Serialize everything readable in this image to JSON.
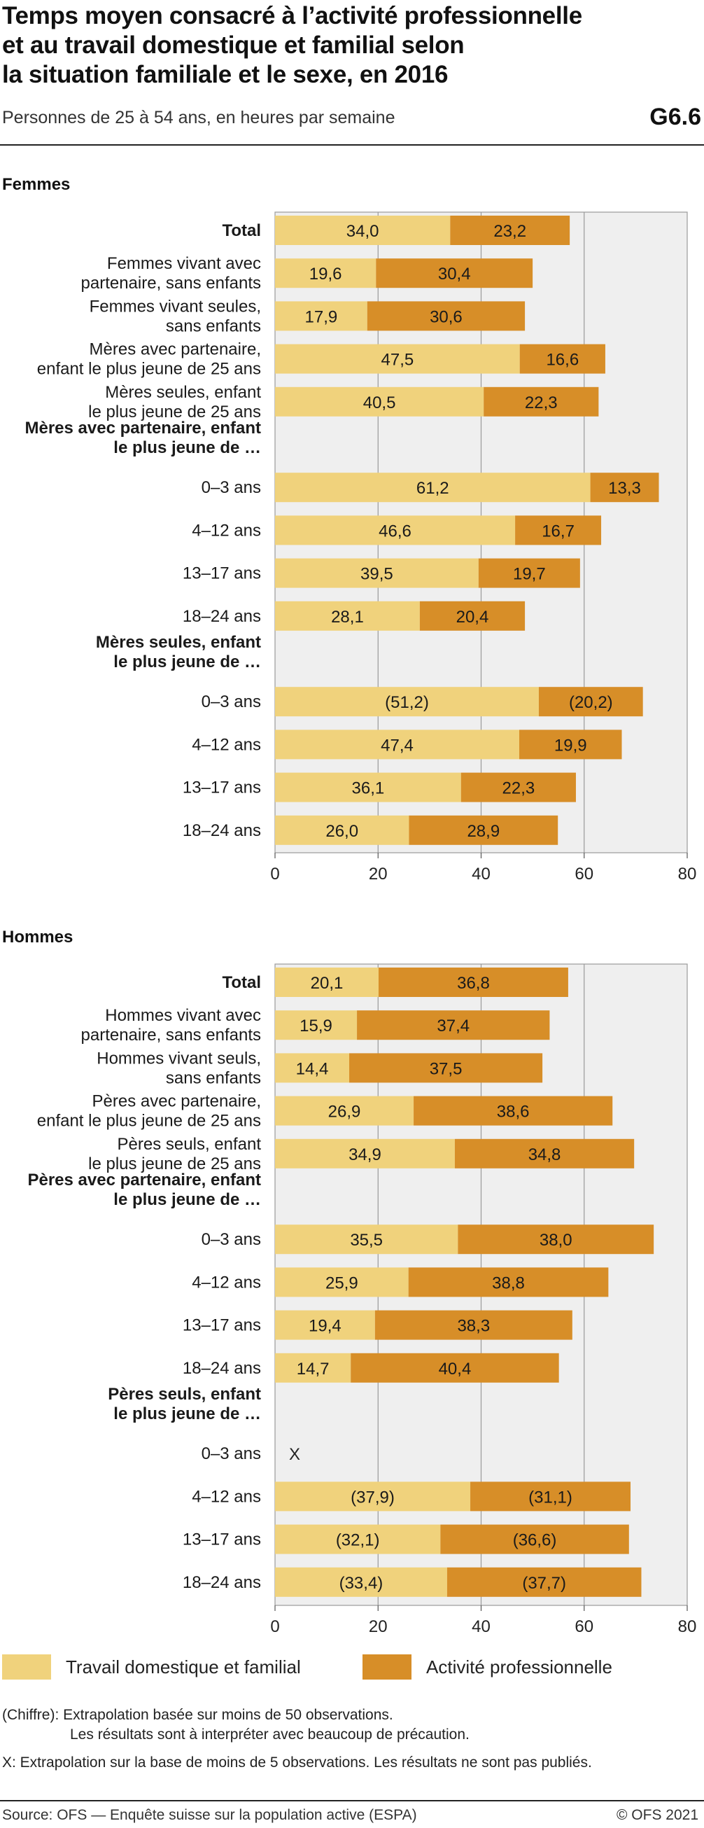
{
  "header": {
    "title_lines": [
      "Temps moyen consacré à l’activité professionnelle",
      "et au travail domestique et familial selon",
      "la situation familiale et le sexe, en 2016"
    ],
    "subtitle": "Personnes de 25 à 54 ans, en heures par semaine",
    "code": "G6.6"
  },
  "legend": {
    "items": [
      {
        "label": "Travail domestique et familial",
        "color": "#f0d27c"
      },
      {
        "label": "Activité professionnelle",
        "color": "#d78e28"
      }
    ]
  },
  "notes": {
    "line1": "(Chiffre): Extrapolation basée sur moins de 50 observations.",
    "line2": "Les résultats sont à interpréter avec beaucoup de précaution.",
    "line3": "X:  Extrapolation sur la base de moins de 5 observations. Les résultats ne sont pas publiés."
  },
  "footer": {
    "source": "Source: OFS — Enquête suisse sur la population active (ESPA)",
    "copyright": "© OFS 2021"
  },
  "chart_data": [
    {
      "type": "bar",
      "orientation": "horizontal",
      "stacked": true,
      "panel_title": "Femmes",
      "xlim": [
        0,
        80
      ],
      "xticks": [
        0,
        20,
        40,
        60,
        80
      ],
      "grid": true,
      "series_names": [
        "Travail domestique et familial",
        "Activité professionnelle"
      ],
      "rows": [
        {
          "label": [
            "Total"
          ],
          "bold": true,
          "values": [
            34.0,
            23.2
          ],
          "value_labels": [
            "34,0",
            "23,2"
          ]
        },
        {
          "label": [
            "Femmes vivant avec",
            "partenaire, sans enfants"
          ],
          "values": [
            19.6,
            30.4
          ],
          "value_labels": [
            "19,6",
            "30,4"
          ]
        },
        {
          "label": [
            "Femmes vivant seules,",
            "sans enfants"
          ],
          "values": [
            17.9,
            30.6
          ],
          "value_labels": [
            "17,9",
            "30,6"
          ]
        },
        {
          "label": [
            "Mères avec partenaire,",
            "enfant le plus jeune de 25 ans"
          ],
          "values": [
            47.5,
            16.6
          ],
          "value_labels": [
            "47,5",
            "16,6"
          ]
        },
        {
          "label": [
            "Mères seules, enfant",
            "le plus jeune de 25 ans"
          ],
          "values": [
            40.5,
            22.3
          ],
          "value_labels": [
            "40,5",
            "22,3"
          ]
        },
        {
          "heading": true,
          "label": [
            "Mères avec partenaire, enfant",
            "le plus jeune de …"
          ]
        },
        {
          "label": [
            "0–3 ans"
          ],
          "values": [
            61.2,
            13.3
          ],
          "value_labels": [
            "61,2",
            "13,3"
          ]
        },
        {
          "label": [
            "4–12 ans"
          ],
          "values": [
            46.6,
            16.7
          ],
          "value_labels": [
            "46,6",
            "16,7"
          ]
        },
        {
          "label": [
            "13–17 ans"
          ],
          "values": [
            39.5,
            19.7
          ],
          "value_labels": [
            "39,5",
            "19,7"
          ]
        },
        {
          "label": [
            "18–24 ans"
          ],
          "values": [
            28.1,
            20.4
          ],
          "value_labels": [
            "28,1",
            "20,4"
          ]
        },
        {
          "heading": true,
          "label": [
            "Mères seules, enfant",
            "le plus jeune de …"
          ]
        },
        {
          "label": [
            "0–3 ans"
          ],
          "values": [
            51.2,
            20.2
          ],
          "value_labels": [
            "(51,2)",
            "(20,2)"
          ]
        },
        {
          "label": [
            "4–12 ans"
          ],
          "values": [
            47.4,
            19.9
          ],
          "value_labels": [
            "47,4",
            "19,9"
          ]
        },
        {
          "label": [
            "13–17 ans"
          ],
          "values": [
            36.1,
            22.3
          ],
          "value_labels": [
            "36,1",
            "22,3"
          ]
        },
        {
          "label": [
            "18–24 ans"
          ],
          "values": [
            26.0,
            28.9
          ],
          "value_labels": [
            "26,0",
            "28,9"
          ]
        }
      ]
    },
    {
      "type": "bar",
      "orientation": "horizontal",
      "stacked": true,
      "panel_title": "Hommes",
      "xlim": [
        0,
        80
      ],
      "xticks": [
        0,
        20,
        40,
        60,
        80
      ],
      "grid": true,
      "series_names": [
        "Travail domestique et familial",
        "Activité professionnelle"
      ],
      "rows": [
        {
          "label": [
            "Total"
          ],
          "bold": true,
          "values": [
            20.1,
            36.8
          ],
          "value_labels": [
            "20,1",
            "36,8"
          ]
        },
        {
          "label": [
            "Hommes vivant avec",
            "partenaire, sans enfants"
          ],
          "values": [
            15.9,
            37.4
          ],
          "value_labels": [
            "15,9",
            "37,4"
          ]
        },
        {
          "label": [
            "Hommes vivant seuls,",
            "sans enfants"
          ],
          "values": [
            14.4,
            37.5
          ],
          "value_labels": [
            "14,4",
            "37,5"
          ]
        },
        {
          "label": [
            "Pères avec partenaire,",
            "enfant le plus jeune de 25 ans"
          ],
          "values": [
            26.9,
            38.6
          ],
          "value_labels": [
            "26,9",
            "38,6"
          ]
        },
        {
          "label": [
            "Pères seuls, enfant",
            "le plus jeune de 25 ans"
          ],
          "values": [
            34.9,
            34.8
          ],
          "value_labels": [
            "34,9",
            "34,8"
          ]
        },
        {
          "heading": true,
          "label": [
            "Pères avec partenaire, enfant",
            "le plus jeune de …"
          ]
        },
        {
          "label": [
            "0–3 ans"
          ],
          "values": [
            35.5,
            38.0
          ],
          "value_labels": [
            "35,5",
            "38,0"
          ]
        },
        {
          "label": [
            "4–12 ans"
          ],
          "values": [
            25.9,
            38.8
          ],
          "value_labels": [
            "25,9",
            "38,8"
          ]
        },
        {
          "label": [
            "13–17 ans"
          ],
          "values": [
            19.4,
            38.3
          ],
          "value_labels": [
            "19,4",
            "38,3"
          ]
        },
        {
          "label": [
            "18–24 ans"
          ],
          "values": [
            14.7,
            40.4
          ],
          "value_labels": [
            "14,7",
            "40,4"
          ]
        },
        {
          "heading": true,
          "label": [
            "Pères seuls, enfant",
            "le plus jeune de …"
          ]
        },
        {
          "label": [
            "0–3 ans"
          ],
          "suppressed": true,
          "marker": "X"
        },
        {
          "label": [
            "4–12 ans"
          ],
          "values": [
            37.9,
            31.1
          ],
          "value_labels": [
            "(37,9)",
            "(31,1)"
          ]
        },
        {
          "label": [
            "13–17 ans"
          ],
          "values": [
            32.1,
            36.6
          ],
          "value_labels": [
            "(32,1)",
            "(36,6)"
          ]
        },
        {
          "label": [
            "18–24 ans"
          ],
          "values": [
            33.4,
            37.7
          ],
          "value_labels": [
            "(33,4)",
            "(37,7)"
          ]
        }
      ]
    }
  ]
}
